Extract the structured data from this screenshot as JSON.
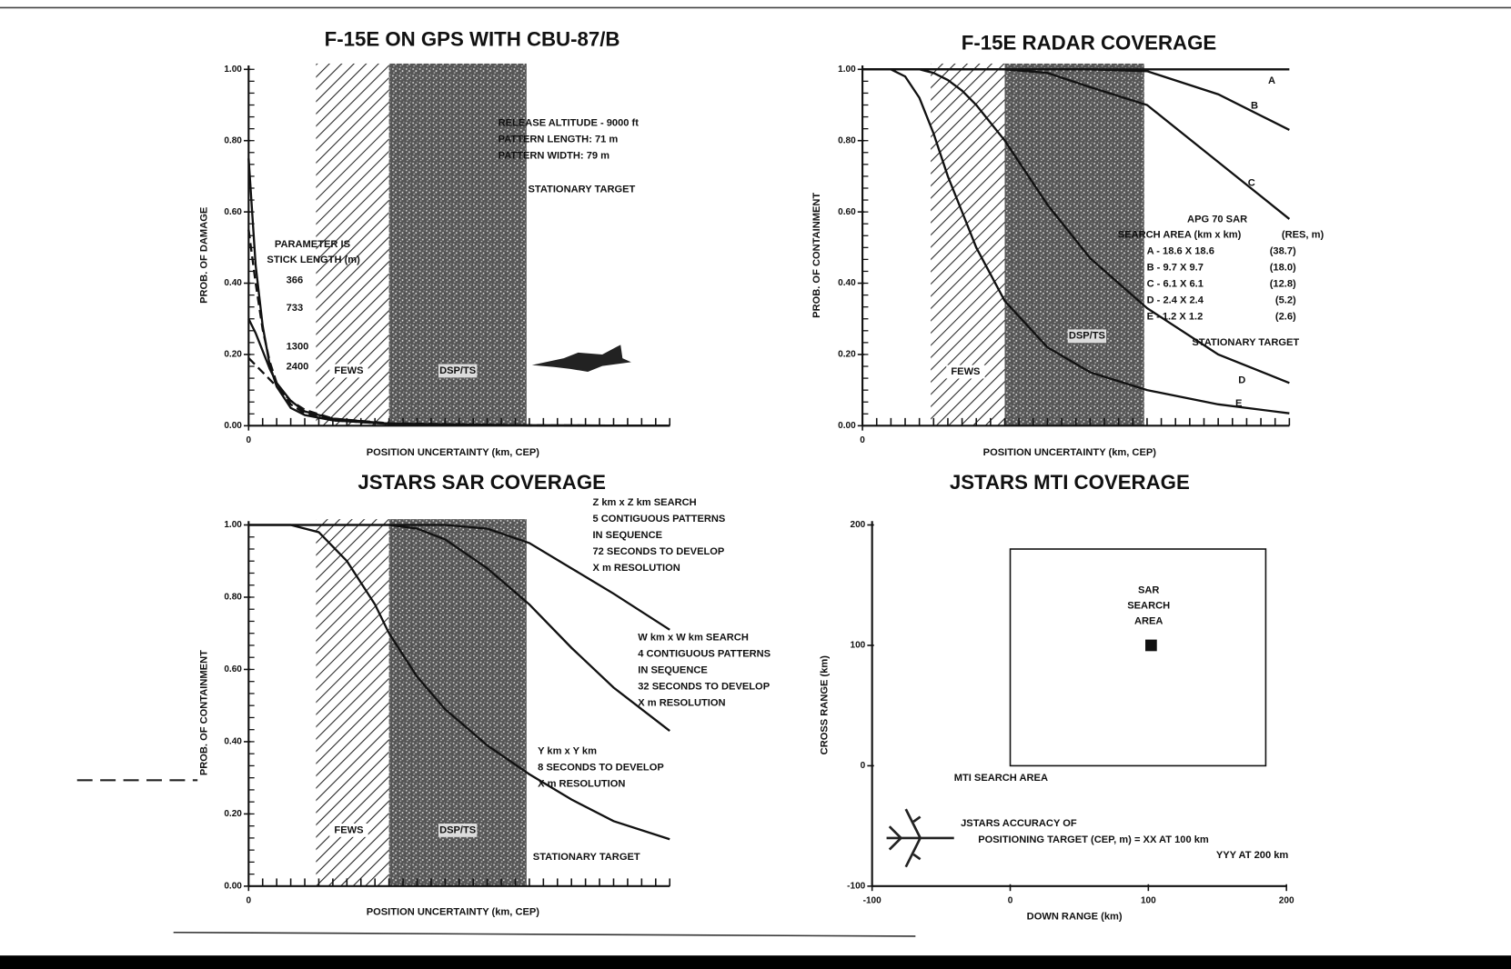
{
  "chart_data": [
    {
      "type": "line",
      "title": "F-15E ON GPS WITH CBU-87/B",
      "x_label": "POSITION UNCERTAINTY (km, CEP)",
      "y_label": "PROB. OF DAMAGE",
      "xlim": [
        0,
        30
      ],
      "ylim": [
        0,
        1
      ],
      "xticks": [
        0
      ],
      "yticks": [
        {
          "value": 0,
          "label": "0.00"
        },
        {
          "value": 0.2,
          "label": "0.20"
        },
        {
          "value": 0.4,
          "label": "0.40"
        },
        {
          "value": 0.6,
          "label": "0.60"
        },
        {
          "value": 0.8,
          "label": "0.80"
        },
        {
          "value": 1,
          "label": "1.00"
        }
      ],
      "bands": [
        {
          "label": "FEWS",
          "x": [
            4.8,
            10
          ],
          "style": "hatch"
        },
        {
          "label": "DSP/TS",
          "x": [
            10,
            19.8
          ],
          "style": "stipple"
        }
      ],
      "x": [
        0,
        0.5,
        1,
        1.5,
        2,
        3,
        4,
        6,
        10,
        20,
        30
      ],
      "series": [
        {
          "name": "366",
          "color": "#111111",
          "style": "solid",
          "values": [
            0.75,
            0.45,
            0.28,
            0.17,
            0.11,
            0.05,
            0.03,
            0.015,
            0.005,
            0.001,
            0
          ]
        },
        {
          "name": "733",
          "color": "#111111",
          "style": "dashed",
          "values": [
            0.55,
            0.4,
            0.27,
            0.18,
            0.12,
            0.06,
            0.035,
            0.015,
            0.005,
            0.001,
            0
          ]
        },
        {
          "name": "1300",
          "color": "#111111",
          "style": "solid",
          "values": [
            0.3,
            0.26,
            0.21,
            0.16,
            0.12,
            0.07,
            0.04,
            0.02,
            0.006,
            0.001,
            0
          ]
        },
        {
          "name": "2400",
          "color": "#111111",
          "style": "dashed",
          "values": [
            0.19,
            0.17,
            0.15,
            0.13,
            0.11,
            0.07,
            0.045,
            0.02,
            0.007,
            0.001,
            0
          ]
        }
      ],
      "annotations": [
        "RELEASE ALTITUDE - 9000 ft",
        "PATTERN LENGTH: 71 m",
        "PATTERN WIDTH: 79 m",
        "STATIONARY TARGET",
        "PARAMETER IS",
        "STICK LENGTH (m)"
      ]
    },
    {
      "type": "line",
      "title": "F-15E RADAR COVERAGE",
      "x_label": "POSITION UNCERTAINTY (km, CEP)",
      "y_label": "PROB. OF CONTAINMENT",
      "xlim": [
        0,
        30
      ],
      "ylim": [
        0,
        1
      ],
      "xticks": [
        0
      ],
      "yticks": [
        {
          "value": 0,
          "label": "0.00"
        },
        {
          "value": 0.2,
          "label": "0.20"
        },
        {
          "value": 0.4,
          "label": "0.40"
        },
        {
          "value": 0.6,
          "label": "0.60"
        },
        {
          "value": 0.8,
          "label": "0.80"
        },
        {
          "value": 1,
          "label": "1.00"
        }
      ],
      "bands": [
        {
          "label": "FEWS",
          "x": [
            4.8,
            10
          ],
          "style": "hatch"
        },
        {
          "label": "DSP/TS",
          "x": [
            10,
            19.8
          ],
          "style": "stipple"
        }
      ],
      "x": [
        0,
        2,
        3,
        4,
        5,
        6,
        7,
        8,
        10,
        13,
        16,
        20,
        25,
        30
      ],
      "series": [
        {
          "name": "A",
          "color": "#111111",
          "style": "solid",
          "values": [
            1,
            1,
            1,
            1,
            1,
            1,
            1,
            1,
            1,
            1,
            1,
            1,
            1,
            1
          ]
        },
        {
          "name": "B",
          "color": "#111111",
          "style": "solid",
          "values": [
            1,
            1,
            1,
            1,
            1,
            1,
            1,
            1,
            1,
            1,
            1,
            0.995,
            0.93,
            0.83
          ]
        },
        {
          "name": "C",
          "color": "#111111",
          "style": "solid",
          "values": [
            1,
            1,
            1,
            1,
            1,
            1,
            1,
            1,
            1,
            0.99,
            0.95,
            0.9,
            0.74,
            0.58
          ]
        },
        {
          "name": "D",
          "color": "#111111",
          "style": "solid",
          "values": [
            1,
            1,
            1,
            1,
            0.99,
            0.97,
            0.94,
            0.9,
            0.8,
            0.62,
            0.47,
            0.33,
            0.2,
            0.12
          ]
        },
        {
          "name": "E",
          "color": "#111111",
          "style": "solid",
          "values": [
            1,
            1,
            0.98,
            0.92,
            0.82,
            0.7,
            0.6,
            0.5,
            0.35,
            0.22,
            0.15,
            0.1,
            0.06,
            0.035
          ]
        }
      ],
      "annotations": [
        "APG 70 SAR",
        "STATIONARY TARGET"
      ],
      "table": {
        "header": [
          "SEARCH AREA (km x km)",
          "(RES, m)"
        ],
        "rows": [
          [
            "A - 18.6 X 18.6",
            "(38.7)"
          ],
          [
            "B - 9.7 X 9.7",
            "(18.0)"
          ],
          [
            "C - 6.1 X 6.1",
            "(12.8)"
          ],
          [
            "D - 2.4 X 2.4",
            "(5.2)"
          ],
          [
            "E - 1.2 X 1.2",
            "(2.6)"
          ]
        ]
      }
    },
    {
      "type": "line",
      "title": "JSTARS SAR COVERAGE",
      "x_label": "POSITION UNCERTAINTY (km, CEP)",
      "y_label": "PROB. OF CONTAINMENT",
      "xlim": [
        0,
        30
      ],
      "ylim": [
        0,
        1
      ],
      "xticks": [
        0
      ],
      "yticks": [
        {
          "value": 0,
          "label": "0.00"
        },
        {
          "value": 0.2,
          "label": "0.20"
        },
        {
          "value": 0.4,
          "label": "0.40"
        },
        {
          "value": 0.6,
          "label": "0.60"
        },
        {
          "value": 0.8,
          "label": "0.80"
        },
        {
          "value": 1,
          "label": "1.00"
        }
      ],
      "bands": [
        {
          "label": "FEWS",
          "x": [
            4.8,
            10
          ],
          "style": "hatch"
        },
        {
          "label": "DSP/TS",
          "x": [
            10,
            19.8
          ],
          "style": "stipple"
        }
      ],
      "x": [
        0,
        3,
        5,
        7,
        9,
        10,
        12,
        14,
        17,
        20,
        23,
        26,
        30
      ],
      "series": [
        {
          "name": "Z km x Z km SEARCH",
          "color": "#111111",
          "style": "solid",
          "notes": [
            "5 CONTIGUOUS PATTERNS",
            "IN SEQUENCE",
            "72 SECONDS TO DEVELOP",
            "X m RESOLUTION"
          ],
          "values": [
            1,
            1,
            1,
            1,
            1,
            1,
            1,
            1,
            0.99,
            0.95,
            0.88,
            0.81,
            0.71
          ]
        },
        {
          "name": "W km x W km SEARCH",
          "color": "#111111",
          "style": "solid",
          "notes": [
            "4 CONTIGUOUS PATTERNS",
            "IN SEQUENCE",
            "32 SECONDS TO DEVELOP",
            "X m RESOLUTION"
          ],
          "values": [
            1,
            1,
            1,
            1,
            1,
            1,
            0.99,
            0.96,
            0.88,
            0.78,
            0.66,
            0.55,
            0.43
          ]
        },
        {
          "name": "Y km x Y km",
          "color": "#111111",
          "style": "solid",
          "notes": [
            "8 SECONDS TO DEVELOP",
            "X m RESOLUTION"
          ],
          "values": [
            1,
            1,
            0.98,
            0.9,
            0.78,
            0.7,
            0.58,
            0.49,
            0.39,
            0.31,
            0.24,
            0.18,
            0.13
          ]
        }
      ],
      "annotations": [
        "STATIONARY TARGET"
      ]
    },
    {
      "type": "region",
      "title": "JSTARS MTI COVERAGE",
      "x_label": "DOWN RANGE (km)",
      "y_label": "CROSS RANGE (km)",
      "xlim": [
        -100,
        200
      ],
      "ylim": [
        -100,
        200
      ],
      "xticks": [
        -100,
        0,
        100,
        200
      ],
      "yticks": [
        -100,
        0,
        100,
        200
      ],
      "regions": [
        {
          "name": "MTI SEARCH AREA",
          "x": [
            0,
            185
          ],
          "y": [
            0,
            180
          ]
        }
      ],
      "points": [
        {
          "name": [
            "SAR",
            "SEARCH",
            "AREA"
          ],
          "x": 102,
          "y": 100
        }
      ],
      "annotations": [
        "JSTARS ACCURACY OF",
        "POSITIONING TARGET (CEP, m) = XX AT 100 km",
        "YYY AT 200 km"
      ]
    }
  ]
}
